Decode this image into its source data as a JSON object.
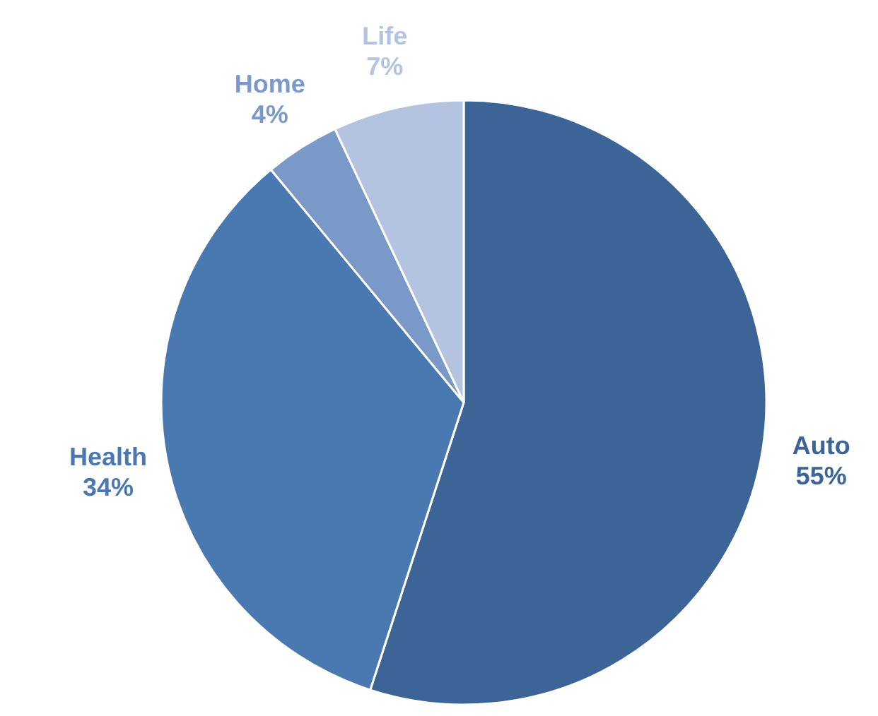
{
  "chart_data": {
    "type": "pie",
    "categories": [
      "Auto",
      "Health",
      "Home",
      "Life"
    ],
    "values": [
      55,
      34,
      4,
      7
    ],
    "value_labels": [
      "55%",
      "34%",
      "4%",
      "7%"
    ],
    "colors": [
      "#3d6496",
      "#4a78b0",
      "#7a98c8",
      "#b4c4e0"
    ]
  }
}
